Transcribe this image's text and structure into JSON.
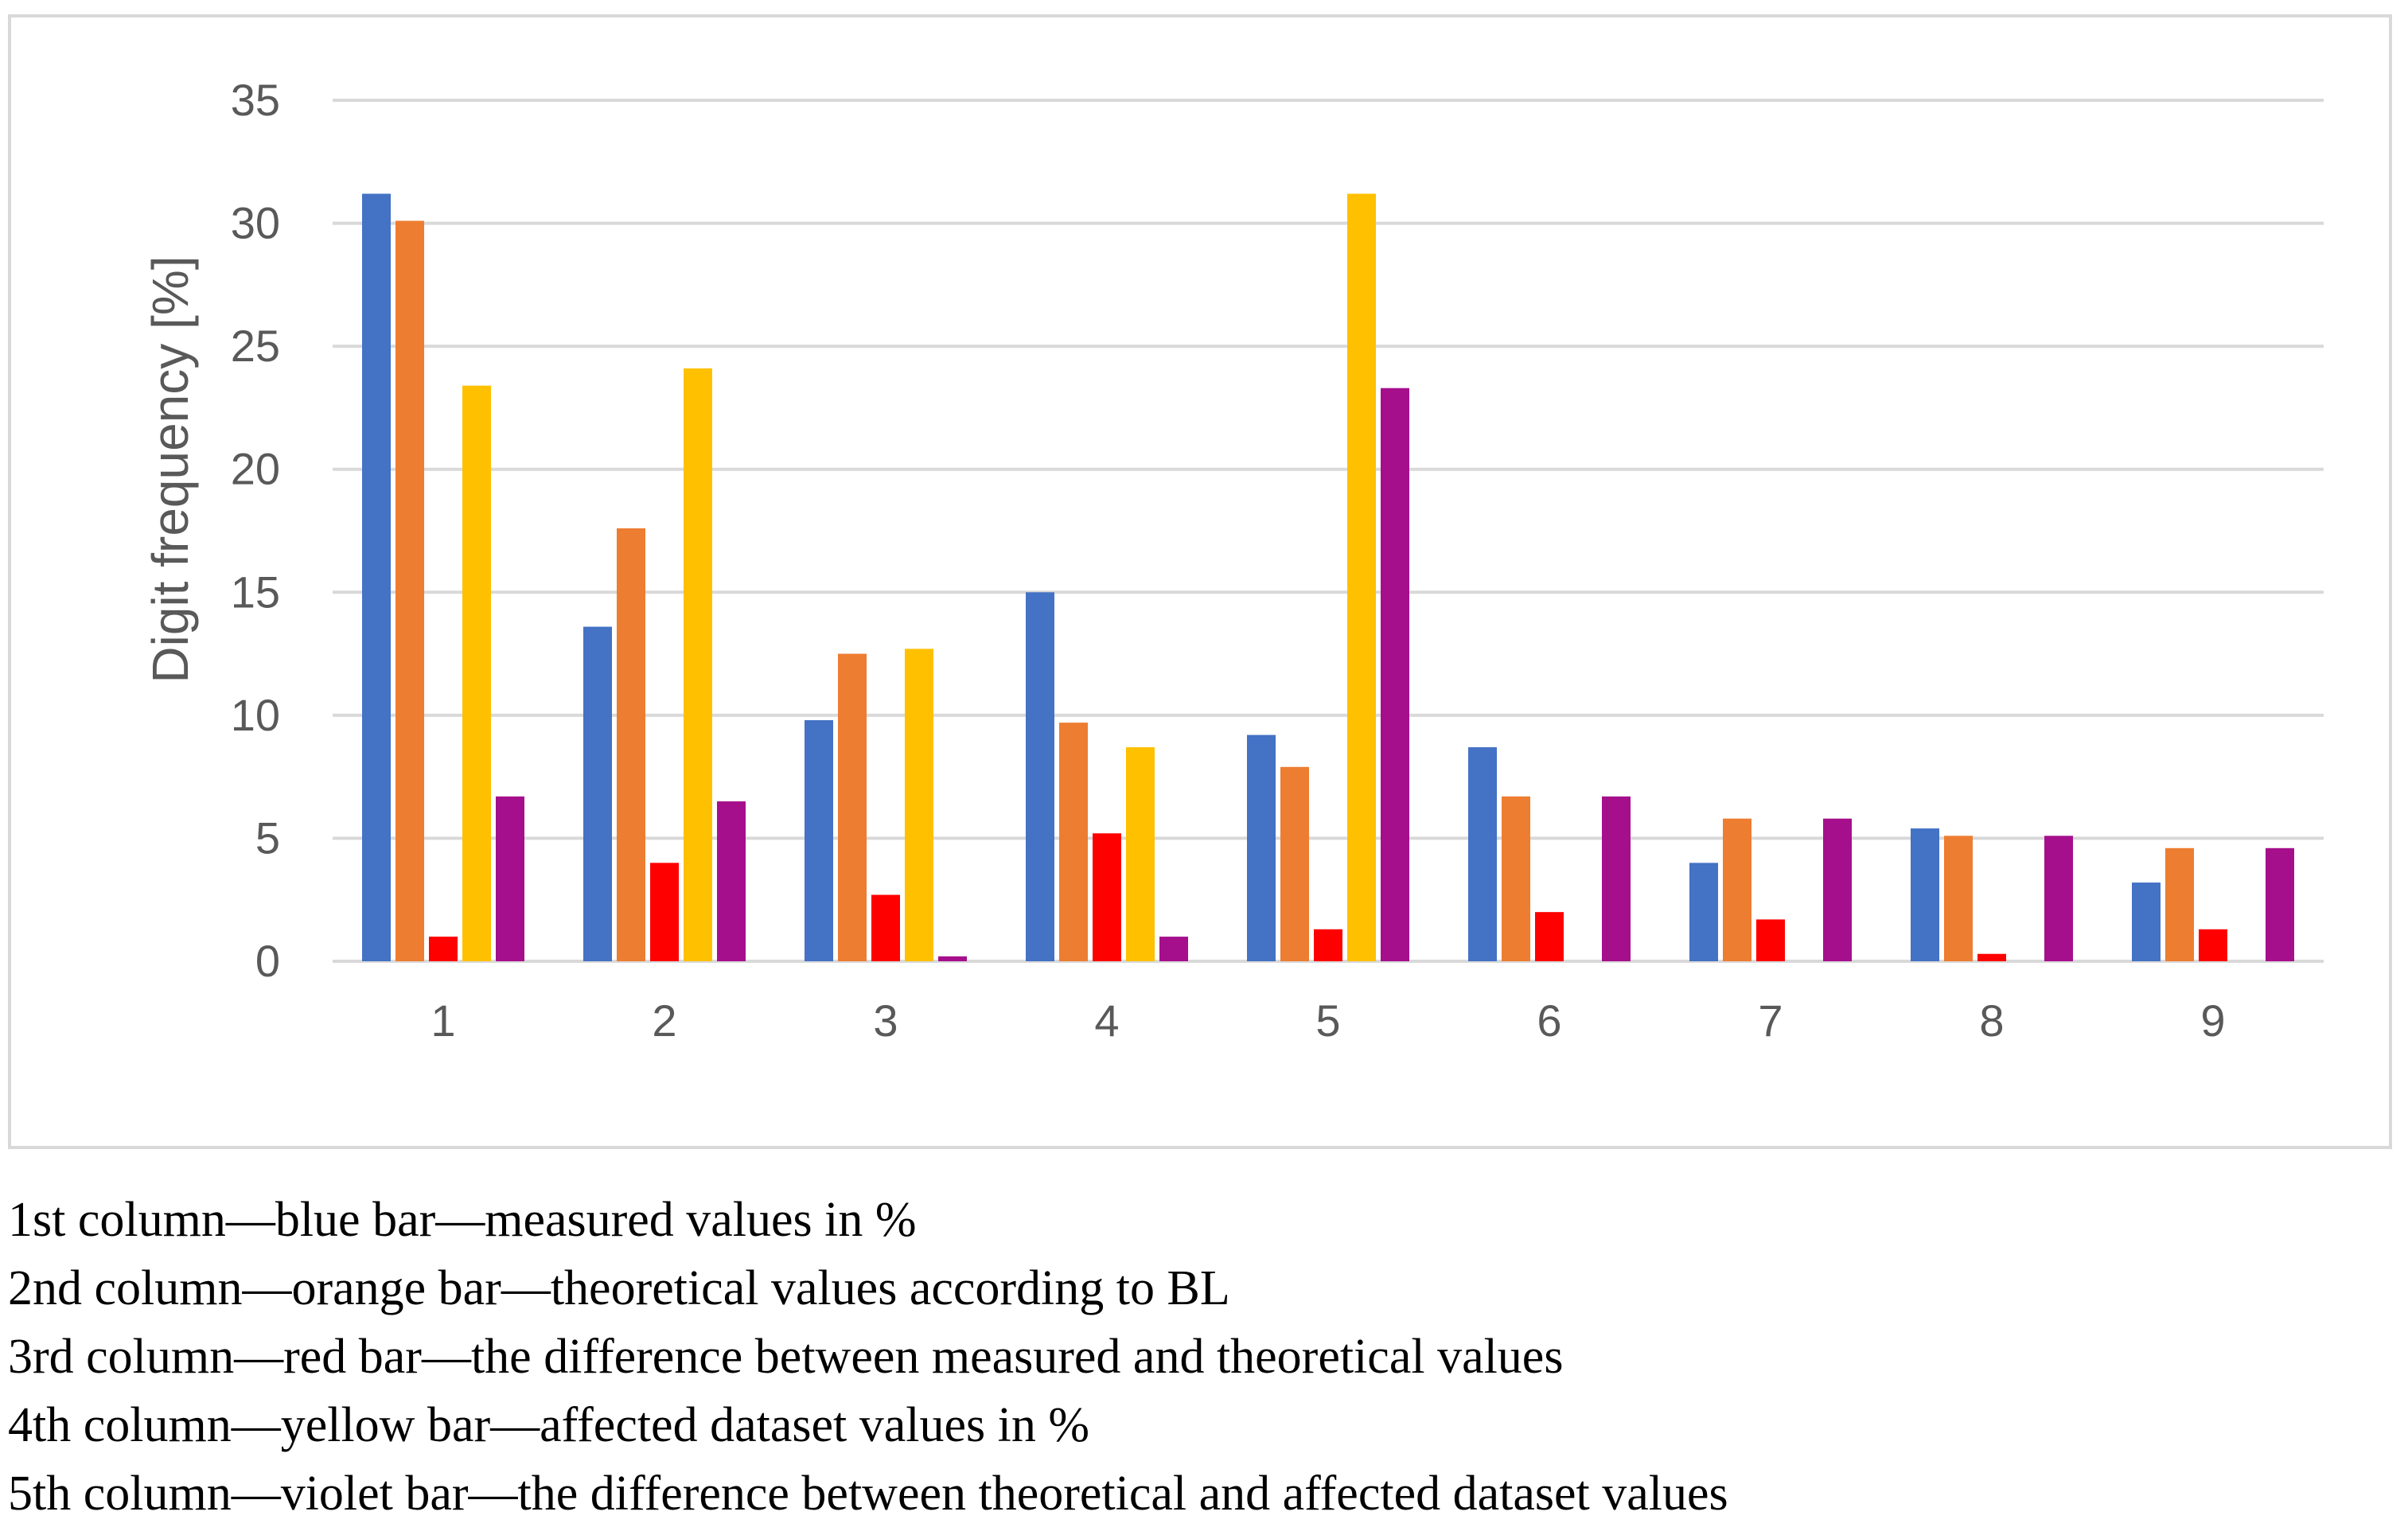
{
  "chart_data": {
    "type": "bar",
    "title": "",
    "xlabel": "",
    "ylabel": "Digit frequency [%]",
    "ylim": [
      0,
      35
    ],
    "yticks": [
      0,
      5,
      10,
      15,
      20,
      25,
      30,
      35
    ],
    "grid": true,
    "legend": "none",
    "categories": [
      "1",
      "2",
      "3",
      "4",
      "5",
      "6",
      "7",
      "8",
      "9"
    ],
    "series": [
      {
        "name": "measured values in %",
        "color": "#4472c4",
        "values": [
          31.2,
          13.6,
          9.8,
          15.0,
          9.2,
          8.7,
          4.0,
          5.4,
          3.2
        ]
      },
      {
        "name": "theoretical values according to BL",
        "color": "#ed7d31",
        "values": [
          30.1,
          17.6,
          12.5,
          9.7,
          7.9,
          6.7,
          5.8,
          5.1,
          4.6
        ]
      },
      {
        "name": "the difference between measured and theoretical values",
        "color": "#ff0000",
        "values": [
          1.0,
          4.0,
          2.7,
          5.2,
          1.3,
          2.0,
          1.7,
          0.3,
          1.3
        ]
      },
      {
        "name": "affected dataset values in %",
        "color": "#ffc000",
        "values": [
          23.4,
          24.1,
          12.7,
          8.7,
          31.2,
          0,
          0,
          0,
          0
        ]
      },
      {
        "name": "the difference between theoretical and affected dataset values",
        "color": "#a50f8c",
        "values": [
          6.7,
          6.5,
          0.2,
          1.0,
          23.3,
          6.7,
          5.8,
          5.1,
          4.6
        ]
      }
    ]
  },
  "notes": [
    "1st column—blue bar—measured values in %",
    "2nd column—orange bar—theoretical values according to BL",
    "3rd column—red bar—the difference between measured and theoretical values",
    "4th column—yellow bar—affected dataset values in %",
    "5th column—violet bar—the difference between theoretical and affected dataset values"
  ],
  "colors": {
    "gridline": "#d9d9d9",
    "axis_text": "#595959",
    "frame": "#d9d9d9"
  }
}
